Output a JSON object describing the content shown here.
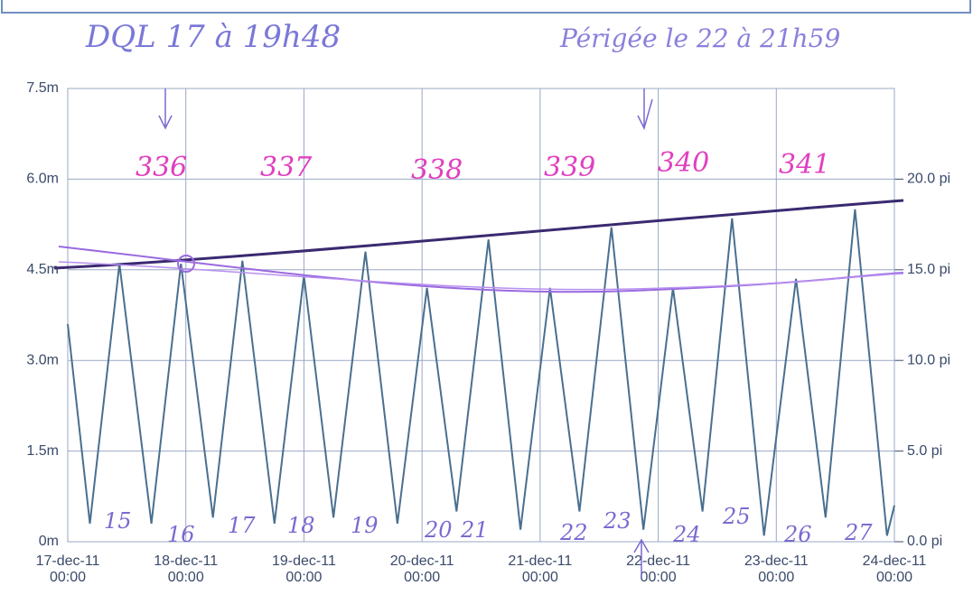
{
  "chart_data": {
    "type": "line",
    "color": "#4a6f8f",
    "x": [
      "2011-12-17T00:00",
      "2011-12-17T04:30",
      "2011-12-17T10:30",
      "2011-12-17T17:00",
      "2011-12-17T23:00",
      "2011-12-18T05:30",
      "2011-12-18T11:30",
      "2011-12-18T18:00",
      "2011-12-19T00:00",
      "2011-12-19T06:00",
      "2011-12-19T12:30",
      "2011-12-19T19:00",
      "2011-12-20T01:00",
      "2011-12-20T07:00",
      "2011-12-20T13:30",
      "2011-12-20T20:00",
      "2011-12-21T02:00",
      "2011-12-21T08:00",
      "2011-12-21T14:30",
      "2011-12-21T21:00",
      "2011-12-22T03:00",
      "2011-12-22T09:00",
      "2011-12-22T15:00",
      "2011-12-22T21:30",
      "2011-12-23T04:00",
      "2011-12-23T10:00",
      "2011-12-23T16:00",
      "2011-12-23T22:30",
      "2011-12-24T00:00"
    ],
    "values": [
      3.6,
      0.3,
      4.6,
      0.3,
      4.6,
      0.4,
      4.65,
      0.3,
      4.4,
      0.4,
      4.8,
      0.3,
      4.2,
      0.5,
      5.0,
      0.2,
      4.2,
      0.5,
      5.2,
      0.2,
      4.2,
      0.5,
      5.35,
      0.1,
      4.35,
      0.4,
      5.5,
      0.1,
      0.6
    ],
    "xlim": [
      "2011-12-17T00:00",
      "2011-12-24T00:00"
    ],
    "xticks": [
      {
        "value": "2011-12-17T00:00",
        "label": [
          "17-dec-11",
          "00:00"
        ]
      },
      {
        "value": "2011-12-18T00:00",
        "label": [
          "18-dec-11",
          "00:00"
        ]
      },
      {
        "value": "2011-12-19T00:00",
        "label": [
          "19-dec-11",
          "00:00"
        ]
      },
      {
        "value": "2011-12-20T00:00",
        "label": [
          "20-dec-11",
          "00:00"
        ]
      },
      {
        "value": "2011-12-21T00:00",
        "label": [
          "21-dec-11",
          "00:00"
        ]
      },
      {
        "value": "2011-12-22T00:00",
        "label": [
          "22-dec-11",
          "00:00"
        ]
      },
      {
        "value": "2011-12-23T00:00",
        "label": [
          "23-dec-11",
          "00:00"
        ]
      },
      {
        "value": "2011-12-24T00:00",
        "label": [
          "24-dec-11",
          "00:00"
        ]
      }
    ],
    "ylim": [
      0,
      7.5
    ],
    "yticks": [
      {
        "value": 0,
        "label": "0m"
      },
      {
        "value": 1.5,
        "label": "1.5m"
      },
      {
        "value": 3,
        "label": "3.0m"
      },
      {
        "value": 4.5,
        "label": "4.5m"
      },
      {
        "value": 6,
        "label": "6.0m"
      },
      {
        "value": 7.5,
        "label": "7.5m"
      }
    ],
    "y2lim": [
      0,
      25
    ],
    "y2ticks": [
      {
        "value": 0,
        "label": "0.0 pi"
      },
      {
        "value": 5,
        "label": "5.0 pi"
      },
      {
        "value": 10,
        "label": "10.0 pi"
      },
      {
        "value": 15,
        "label": "15.0 pi"
      },
      {
        "value": 20,
        "label": "20.0 pi"
      }
    ],
    "grid": true,
    "annotations": [
      "DQL 17 à 19h48",
      "Périgée le 22 à 21h59",
      "336",
      "337",
      "338",
      "339",
      "340",
      "341",
      "15",
      "16",
      "17",
      "18",
      "19",
      "20",
      "21",
      "22",
      "23",
      "24",
      "25",
      "26",
      "27"
    ]
  }
}
